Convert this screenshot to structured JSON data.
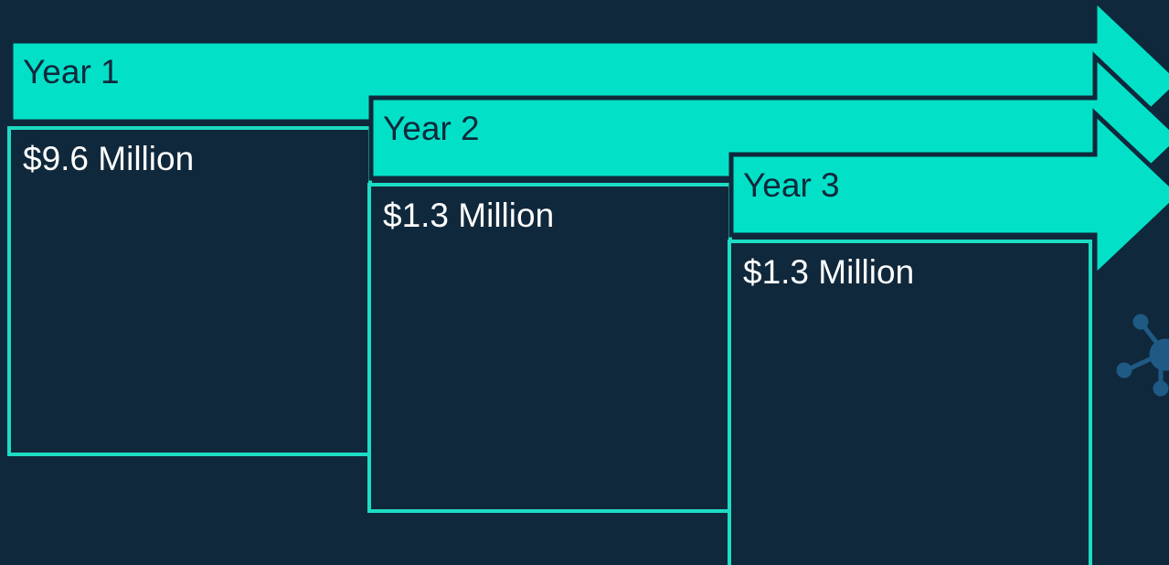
{
  "steps": [
    {
      "label": "Year 1",
      "value": "$9.6 Million"
    },
    {
      "label": "Year 2",
      "value": "$1.3 Million"
    },
    {
      "label": "Year 3",
      "value": "$1.3 Million"
    }
  ]
}
